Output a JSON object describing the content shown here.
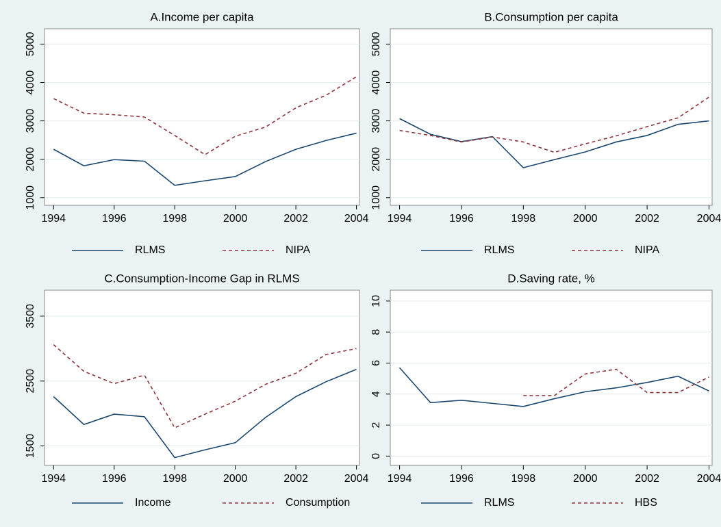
{
  "chart_data": [
    {
      "type": "line",
      "title": "A.Income per capita",
      "x": [
        1994,
        1995,
        1996,
        1997,
        1998,
        1999,
        2000,
        2001,
        2002,
        2003,
        2004
      ],
      "series": [
        {
          "name": "RLMS",
          "color": "#1a476f",
          "dash": false,
          "values": [
            2260,
            1830,
            1990,
            1950,
            1320,
            1440,
            1550,
            1940,
            2260,
            2490,
            2680
          ]
        },
        {
          "name": "NIPA",
          "color": "#90353b",
          "dash": true,
          "values": [
            3580,
            3200,
            3160,
            3100,
            2620,
            2120,
            2600,
            2840,
            3340,
            3670,
            4150
          ]
        }
      ],
      "xlim": [
        1993.7,
        2004.1
      ],
      "xticks": [
        1994,
        1996,
        1998,
        2000,
        2002,
        2004
      ],
      "ylim": [
        800,
        5400
      ],
      "yticks": [
        1000,
        2000,
        3000,
        4000,
        5000
      ],
      "grid": true
    },
    {
      "type": "line",
      "title": "B.Consumption per capita",
      "x": [
        1994,
        1995,
        1996,
        1997,
        1998,
        1999,
        2000,
        2001,
        2002,
        2003,
        2004
      ],
      "series": [
        {
          "name": "RLMS",
          "color": "#1a476f",
          "dash": false,
          "values": [
            3060,
            2650,
            2460,
            2590,
            1780,
            1990,
            2190,
            2450,
            2620,
            2910,
            3000
          ]
        },
        {
          "name": "NIPA",
          "color": "#90353b",
          "dash": true,
          "values": [
            2750,
            2620,
            2450,
            2580,
            2450,
            2180,
            2400,
            2610,
            2850,
            3080,
            3620
          ]
        }
      ],
      "xlim": [
        1993.7,
        2004.1
      ],
      "xticks": [
        1994,
        1996,
        1998,
        2000,
        2002,
        2004
      ],
      "ylim": [
        800,
        5400
      ],
      "yticks": [
        1000,
        2000,
        3000,
        4000,
        5000
      ],
      "grid": true
    },
    {
      "type": "line",
      "title": "C.Consumption-Income Gap in RLMS",
      "x": [
        1994,
        1995,
        1996,
        1997,
        1998,
        1999,
        2000,
        2001,
        2002,
        2003,
        2004
      ],
      "series": [
        {
          "name": "Income",
          "color": "#1a476f",
          "dash": false,
          "values": [
            2260,
            1830,
            1990,
            1950,
            1320,
            1440,
            1550,
            1940,
            2260,
            2490,
            2680
          ]
        },
        {
          "name": "Consumption",
          "color": "#90353b",
          "dash": true,
          "values": [
            3060,
            2650,
            2460,
            2590,
            1780,
            1990,
            2190,
            2450,
            2620,
            2910,
            3000
          ]
        }
      ],
      "xlim": [
        1993.7,
        2004.1
      ],
      "xticks": [
        1994,
        1996,
        1998,
        2000,
        2002,
        2004
      ],
      "ylim": [
        1200,
        3900
      ],
      "yticks": [
        1500,
        2500,
        3500
      ],
      "grid": true
    },
    {
      "type": "line",
      "title": "D.Saving rate, %",
      "x": [
        1994,
        1995,
        1996,
        1997,
        1998,
        1999,
        2000,
        2001,
        2002,
        2003,
        2004
      ],
      "series": [
        {
          "name": "RLMS",
          "color": "#1a476f",
          "dash": false,
          "values": [
            5.7,
            3.45,
            3.6,
            3.4,
            3.2,
            3.7,
            4.15,
            4.4,
            4.75,
            5.15,
            4.2
          ]
        },
        {
          "name": "HBS",
          "color": "#90353b",
          "dash": true,
          "values": [
            null,
            null,
            null,
            null,
            3.9,
            3.9,
            5.3,
            5.6,
            4.1,
            4.1,
            5.1
          ]
        }
      ],
      "xlim": [
        1993.7,
        2004.1
      ],
      "xticks": [
        1994,
        1996,
        1998,
        2000,
        2002,
        2004
      ],
      "ylim": [
        -0.6,
        10.7
      ],
      "yticks": [
        0,
        2,
        4,
        6,
        8,
        10
      ],
      "grid": true
    }
  ]
}
